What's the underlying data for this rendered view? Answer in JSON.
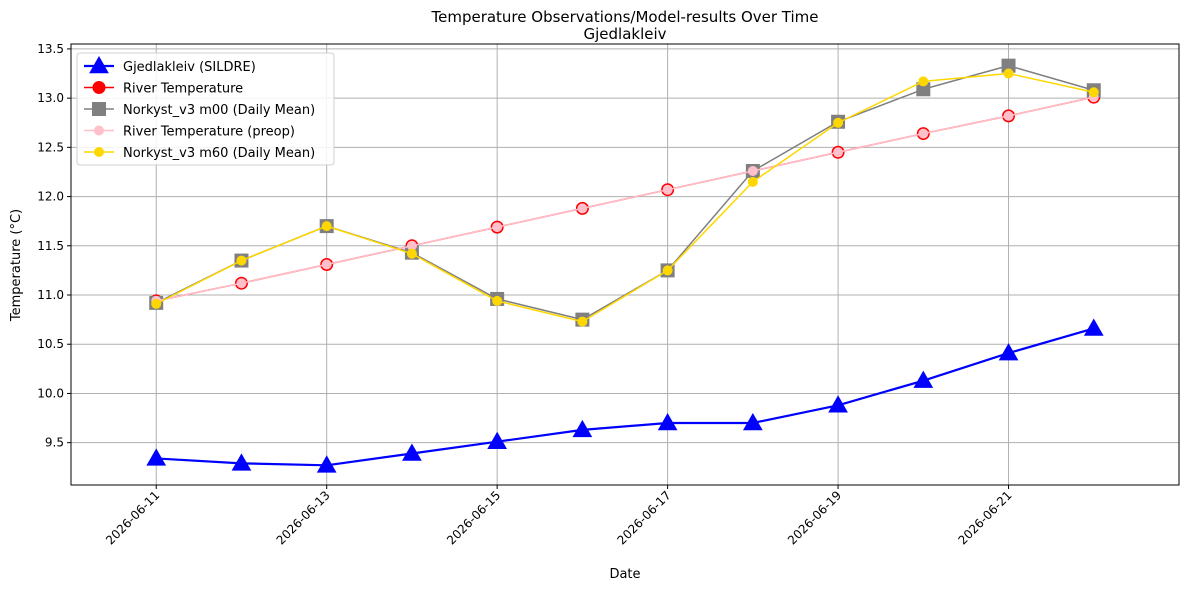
{
  "chart_data": {
    "type": "line",
    "title": "Temperature Observations/Model-results Over Time",
    "subtitle": "Gjedlakleiv",
    "xlabel": "Date",
    "ylabel": "Temperature (°C)",
    "x": [
      "2026-06-11",
      "2026-06-12",
      "2026-06-13",
      "2026-06-14",
      "2026-06-15",
      "2026-06-16",
      "2026-06-17",
      "2026-06-18",
      "2026-06-19",
      "2026-06-20",
      "2026-06-21",
      "2026-06-22"
    ],
    "xticks": [
      "2026-06-11",
      "2026-06-13",
      "2026-06-15",
      "2026-06-17",
      "2026-06-19",
      "2026-06-21"
    ],
    "xlim": [
      "2026-06-10",
      "2026-06-23"
    ],
    "yticks": [
      "9.5",
      "10.0",
      "10.5",
      "11.0",
      "11.5",
      "12.0",
      "12.5",
      "13.0",
      "13.5"
    ],
    "ylim": [
      9.07,
      13.55
    ],
    "grid": true,
    "legend_position": "top-left",
    "series": [
      {
        "name": "Gjedlakleiv (SILDRE)",
        "color": "#0000ff",
        "marker": "triangle",
        "values": [
          9.34,
          9.29,
          9.27,
          9.39,
          9.51,
          9.63,
          9.7,
          9.7,
          9.88,
          10.13,
          10.41,
          10.66
        ]
      },
      {
        "name": "River Temperature",
        "color": "#ff0000",
        "marker": "circle",
        "values": [
          10.94,
          11.12,
          11.31,
          11.5,
          11.69,
          11.88,
          12.07,
          12.26,
          12.45,
          12.64,
          12.82,
          13.01
        ]
      },
      {
        "name": "Norkyst_v3 m00 (Daily Mean)",
        "color": "#808080",
        "marker": "square",
        "values": [
          10.92,
          11.35,
          11.7,
          11.43,
          10.96,
          10.75,
          11.25,
          12.26,
          12.76,
          13.09,
          13.33,
          13.08
        ]
      },
      {
        "name": "River Temperature (preop)",
        "color": "#ffc0cb",
        "marker": "circle-small",
        "values": [
          10.94,
          11.12,
          11.31,
          11.5,
          11.69,
          11.88,
          12.07,
          12.26,
          12.45,
          12.64,
          12.82,
          13.01
        ]
      },
      {
        "name": "Norkyst_v3 m60 (Daily Mean)",
        "color": "#ffd700",
        "marker": "circle-small",
        "values": [
          10.91,
          11.35,
          11.7,
          11.42,
          10.94,
          10.73,
          11.25,
          12.15,
          12.75,
          13.17,
          13.25,
          13.06
        ]
      }
    ]
  }
}
